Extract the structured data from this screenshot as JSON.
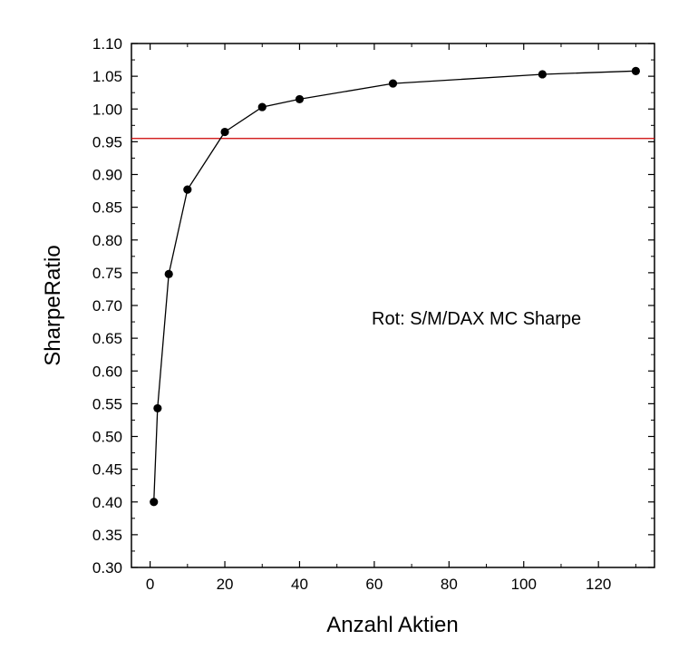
{
  "chart_data": {
    "type": "scatter",
    "xlabel": "Anzahl Aktien",
    "ylabel": "SharpeRatio",
    "xlim": [
      -5,
      135
    ],
    "ylim": [
      0.3,
      1.1
    ],
    "x_ticks": [
      0,
      20,
      40,
      60,
      80,
      100,
      120
    ],
    "x_tick_labels": [
      "0",
      "20",
      "40",
      "60",
      "80",
      "100",
      "120"
    ],
    "y_ticks": [
      0.3,
      0.35,
      0.4,
      0.45,
      0.5,
      0.55,
      0.6,
      0.65,
      0.7,
      0.75,
      0.8,
      0.85,
      0.9,
      0.95,
      1.0,
      1.05,
      1.1
    ],
    "y_tick_labels": [
      "0.30",
      "0.35",
      "0.40",
      "0.45",
      "0.50",
      "0.55",
      "0.60",
      "0.65",
      "0.70",
      "0.75",
      "0.80",
      "0.85",
      "0.90",
      "0.95",
      "1.00",
      "1.05",
      "1.10"
    ],
    "grid": false,
    "series": [
      {
        "x": [
          1,
          2,
          5,
          10,
          20,
          30,
          40,
          65,
          105,
          130
        ],
        "y": [
          0.4,
          0.543,
          0.748,
          0.877,
          0.965,
          1.003,
          1.015,
          1.039,
          1.053,
          1.058
        ],
        "color": "#000000",
        "style": "line-with-markers"
      }
    ],
    "reference_lines": [
      {
        "axis": "y",
        "value": 0.955,
        "color": "#cc0000"
      }
    ],
    "annotation": {
      "text": "Rot: S/M/DAX MC Sharpe"
    }
  }
}
